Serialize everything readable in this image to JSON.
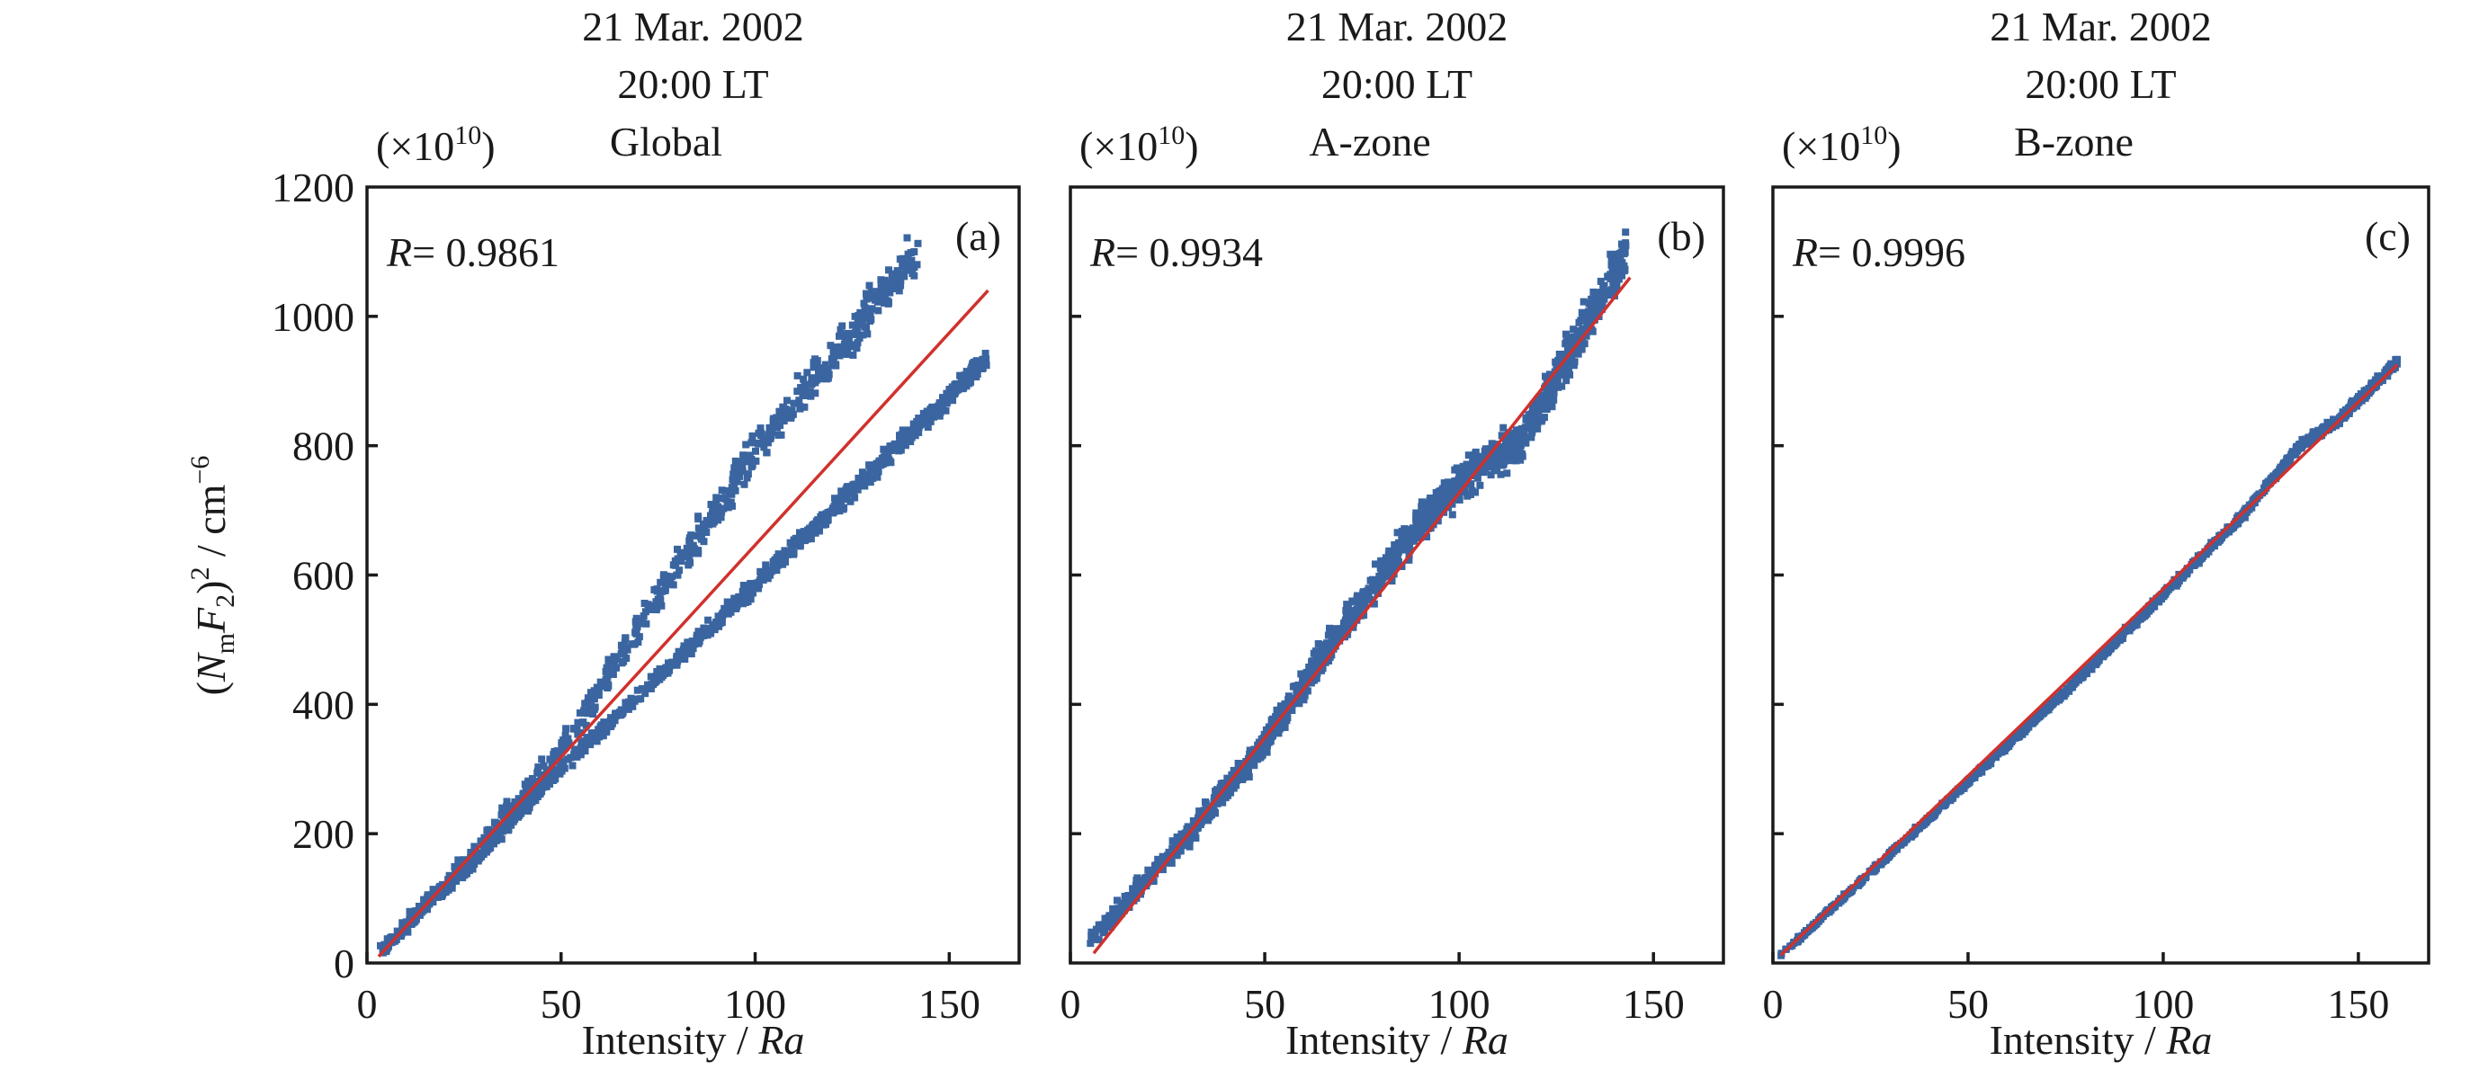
{
  "chart_data": [
    {
      "type": "scatter",
      "panel_label": "(a)",
      "title_lines": [
        "21 Mar. 2002",
        "20:00 LT",
        "Global"
      ],
      "multiplier": "(×10",
      "multiplier_exp": "10",
      "multiplier_close": ")",
      "r_symbol": "R",
      "r_value": "= 0.9861",
      "xlabel": "Intensity / ",
      "xlabel_italic": "Ra",
      "xlim": [
        0,
        168
      ],
      "ylim": [
        0,
        1200
      ],
      "xticks": [
        0,
        50,
        100,
        150
      ],
      "yticks": [
        0,
        200,
        400,
        600,
        800,
        1000,
        1200
      ],
      "point_color": "#3a65a0",
      "fit_color": "#d0312d",
      "fit_line": {
        "x": [
          3,
          160
        ],
        "y": [
          10,
          1040
        ]
      },
      "point_bands": [
        {
          "x": [
            3,
            30,
            50,
            80,
            100,
            130,
            160
          ],
          "y": [
            15,
            170,
            300,
            470,
            585,
            760,
            935
          ],
          "spread": 14,
          "count": 900
        },
        {
          "x": [
            3,
            30,
            50,
            80,
            100,
            125,
            142
          ],
          "y": [
            15,
            185,
            330,
            610,
            790,
            980,
            1100
          ],
          "spread": 30,
          "count": 700
        }
      ]
    },
    {
      "type": "scatter",
      "panel_label": "(b)",
      "title_lines": [
        "21 Mar. 2002",
        "20:00 LT",
        "A-zone"
      ],
      "multiplier": "(×10",
      "multiplier_exp": "10",
      "multiplier_close": ")",
      "r_symbol": "R",
      "r_value": "= 0.9934",
      "xlabel": "Intensity / ",
      "xlabel_italic": "Ra",
      "xlim": [
        0,
        168
      ],
      "ylim": [
        0,
        1200
      ],
      "xticks": [
        0,
        50,
        100,
        150
      ],
      "yticks": [
        0,
        200,
        400,
        600,
        800,
        1000,
        1200
      ],
      "point_color": "#3a65a0",
      "fit_color": "#d0312d",
      "fit_line": {
        "x": [
          6,
          144
        ],
        "y": [
          15,
          1060
        ]
      },
      "point_bands": [
        {
          "x": [
            5,
            25,
            50,
            70,
            90,
            105,
            115,
            130,
            143
          ],
          "y": [
            35,
            160,
            340,
            520,
            680,
            770,
            800,
            960,
            1100
          ],
          "spread": 30,
          "count": 1400
        }
      ]
    },
    {
      "type": "scatter",
      "panel_label": "(c)",
      "title_lines": [
        "21 Mar. 2002",
        "20:00 LT",
        "B-zone"
      ],
      "multiplier": "(×10",
      "multiplier_exp": "10",
      "multiplier_close": ")",
      "r_symbol": "R",
      "r_value": "= 0.9996",
      "xlabel": "Intensity / ",
      "xlabel_italic": "Ra",
      "xlim": [
        0,
        168
      ],
      "ylim": [
        0,
        1200
      ],
      "xticks": [
        0,
        50,
        100,
        150
      ],
      "yticks": [
        0,
        200,
        400,
        600,
        800,
        1000,
        1200
      ],
      "point_color": "#3a65a0",
      "fit_color": "#d0312d",
      "fit_line": {
        "x": [
          2,
          160
        ],
        "y": [
          12,
          925
        ]
      },
      "point_bands": [
        {
          "x": [
            2,
            25,
            50,
            75,
            100,
            120,
            135,
            145,
            160
          ],
          "y": [
            12,
            140,
            280,
            420,
            570,
            690,
            800,
            840,
            930
          ],
          "spread": 6,
          "count": 1300
        }
      ]
    }
  ],
  "ylabel": {
    "open": "(",
    "n": "N",
    "m": "m",
    "f": "F",
    "two": "2",
    "close": ")",
    "sq": "2",
    "unit": " / cm",
    "exp": "−6"
  }
}
